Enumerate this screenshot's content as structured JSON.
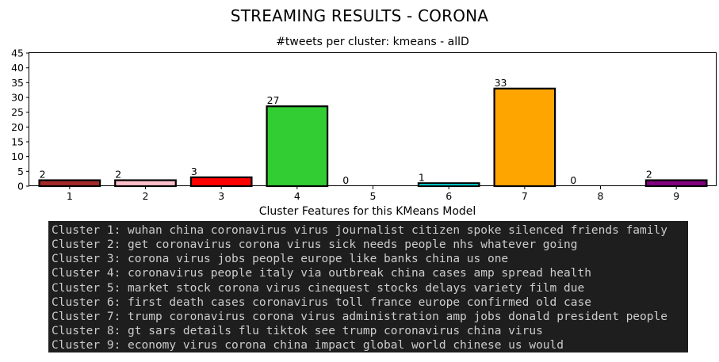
{
  "page_title": "STREAMING RESULTS - CORONA",
  "chart_data": {
    "type": "bar",
    "title": "#tweets per cluster: kmeans - allD",
    "xlabel": "",
    "ylabel": "",
    "categories": [
      "1",
      "2",
      "3",
      "4",
      "5",
      "6",
      "7",
      "8",
      "9"
    ],
    "values": [
      2,
      2,
      3,
      27,
      0,
      1,
      33,
      0,
      2
    ],
    "data_labels": [
      "2",
      "2",
      "3",
      "27",
      "0",
      "1",
      "33",
      "0",
      "2"
    ],
    "colors": [
      "#a52a2a",
      "#ffc0cb",
      "#ff0000",
      "#32cd32",
      "#1f77b4",
      "#00ffff",
      "#ffa500",
      "#808080",
      "#800080"
    ],
    "ylim": [
      0,
      45
    ],
    "yticks": [
      0,
      5,
      10,
      15,
      20,
      25,
      30,
      35,
      40,
      45
    ],
    "grid": false,
    "legend": "none"
  },
  "features": {
    "title": "Cluster Features for this KMeans Model",
    "lines": [
      "Cluster 1: wuhan china coronavirus virus journalist citizen spoke silenced friends family",
      "Cluster 2: get coronavirus corona virus sick needs people nhs whatever going",
      "Cluster 3: corona virus jobs people europe like banks china us one",
      "Cluster 4: coronavirus people italy via outbreak china cases amp spread health",
      "Cluster 5: market stock corona virus cinequest stocks delays variety film due",
      "Cluster 6: first death cases coronavirus toll france europe confirmed old case",
      "Cluster 7: trump coronavirus corona virus administration amp jobs donald president people",
      "Cluster 8: gt sars details flu tiktok see trump coronavirus china virus",
      "Cluster 9: economy virus corona china impact global world chinese us would"
    ]
  }
}
